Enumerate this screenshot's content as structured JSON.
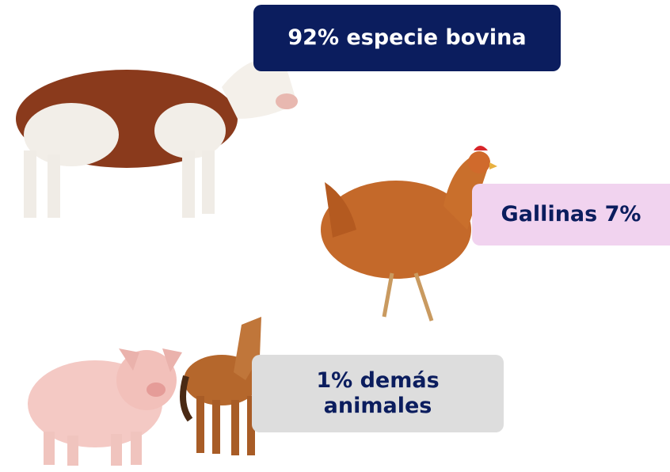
{
  "labels": [
    {
      "lines": [
        "92% especie bovina"
      ]
    },
    {
      "lines": [
        "Gallinas 7%"
      ]
    },
    {
      "lines": [
        "1% demás",
        "animales"
      ]
    }
  ]
}
